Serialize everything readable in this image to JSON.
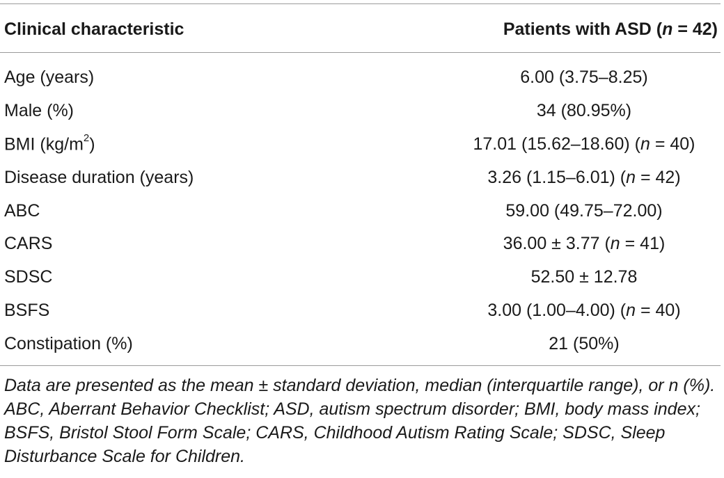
{
  "table": {
    "header": {
      "characteristic": "Clinical characteristic",
      "patients_prefix": "Patients with ASD (",
      "patients_n_italic": "n",
      "patients_suffix": " = 42)"
    },
    "rows": [
      {
        "label": "Age (years)",
        "value": "6.00 (3.75–8.25)",
        "n_note": ""
      },
      {
        "label": "Male (%)",
        "value": "34 (80.95%)",
        "n_note": ""
      },
      {
        "label": "BMI (kg/m",
        "label_sup": "2",
        "label_suffix": ")",
        "value": "17.01 (15.62–18.60) (",
        "n_note": "n",
        "value_suffix": " = 40)"
      },
      {
        "label": "Disease duration (years)",
        "value": "3.26 (1.15–6.01) (",
        "n_note": "n",
        "value_suffix": " = 42)"
      },
      {
        "label": "ABC",
        "value": "59.00 (49.75–72.00)",
        "n_note": ""
      },
      {
        "label": "CARS",
        "value": "36.00 ± 3.77 (",
        "n_note": "n",
        "value_suffix": " = 41)"
      },
      {
        "label": "SDSC",
        "value": "52.50 ± 12.78",
        "n_note": ""
      },
      {
        "label": "BSFS",
        "value": "3.00 (1.00–4.00) (",
        "n_note": "n",
        "value_suffix": " = 40)"
      },
      {
        "label": "Constipation (%)",
        "value": "21 (50%)",
        "n_note": ""
      }
    ],
    "footnote": "Data are presented as the mean ± standard deviation, median (interquartile range), or n (%). ABC, Aberrant Behavior Checklist; ASD, autism spectrum disorder; BMI, body mass index; BSFS, Bristol Stool Form Scale; CARS, Childhood Autism Rating Scale; SDSC, Sleep Disturbance Scale for Children."
  }
}
